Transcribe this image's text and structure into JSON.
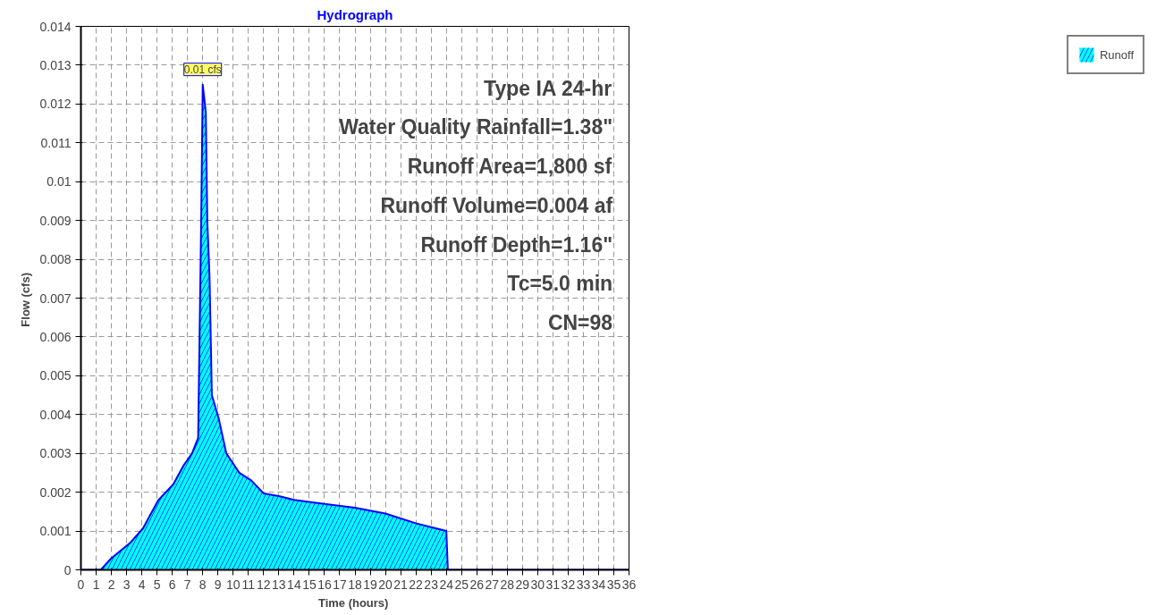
{
  "chart_data": {
    "type": "area",
    "title": "Hydrograph",
    "xlabel": "Time  (hours)",
    "ylabel": "Flow  (cfs)",
    "x": [
      0,
      1.3,
      2,
      3.27,
      4.08,
      5.09,
      6.06,
      6.76,
      7.3,
      7.7,
      7.9,
      8.0,
      8.2,
      8.3,
      8.45,
      8.6,
      9.05,
      9.55,
      10.4,
      11.2,
      12,
      13,
      14,
      16,
      18,
      20,
      22,
      23,
      24,
      24.1,
      25,
      30,
      36
    ],
    "series": [
      {
        "name": "Runoff",
        "color": "#00ffff",
        "values": [
          0,
          0,
          0.0003,
          0.00071,
          0.00107,
          0.0018,
          0.0022,
          0.0027,
          0.003,
          0.0034,
          0.009,
          0.0125,
          0.0118,
          0.009,
          0.0075,
          0.0045,
          0.0039,
          0.003,
          0.0025,
          0.0023,
          0.00197,
          0.0019,
          0.0018,
          0.0017,
          0.0016,
          0.00145,
          0.0012,
          0.0011,
          0.001,
          0,
          0,
          0,
          0
        ]
      }
    ],
    "xlim": [
      0,
      36
    ],
    "ylim": [
      0,
      0.014
    ],
    "xticks": [
      0,
      1,
      2,
      3,
      4,
      5,
      6,
      7,
      8,
      9,
      10,
      11,
      12,
      13,
      14,
      15,
      16,
      17,
      18,
      19,
      20,
      21,
      22,
      23,
      24,
      25,
      26,
      27,
      28,
      29,
      30,
      31,
      32,
      33,
      34,
      35,
      36
    ],
    "yticks": [
      0,
      0.001,
      0.002,
      0.003,
      0.004,
      0.005,
      0.006,
      0.007,
      0.008,
      0.009,
      0.01,
      0.011,
      0.012,
      0.013,
      0.014
    ],
    "grid": true,
    "legend": "top right",
    "annotations": [
      {
        "text": "0.01 cfs",
        "x": 8.0,
        "y": 0.0125
      },
      "Type IA 24-hr",
      "Water Quality Rainfall=1.38\"",
      "Runoff Area=1,800 sf",
      "Runoff Volume=0.004 af",
      "Runoff Depth=1.16\"",
      "Tc=5.0 min",
      "CN=98"
    ]
  }
}
